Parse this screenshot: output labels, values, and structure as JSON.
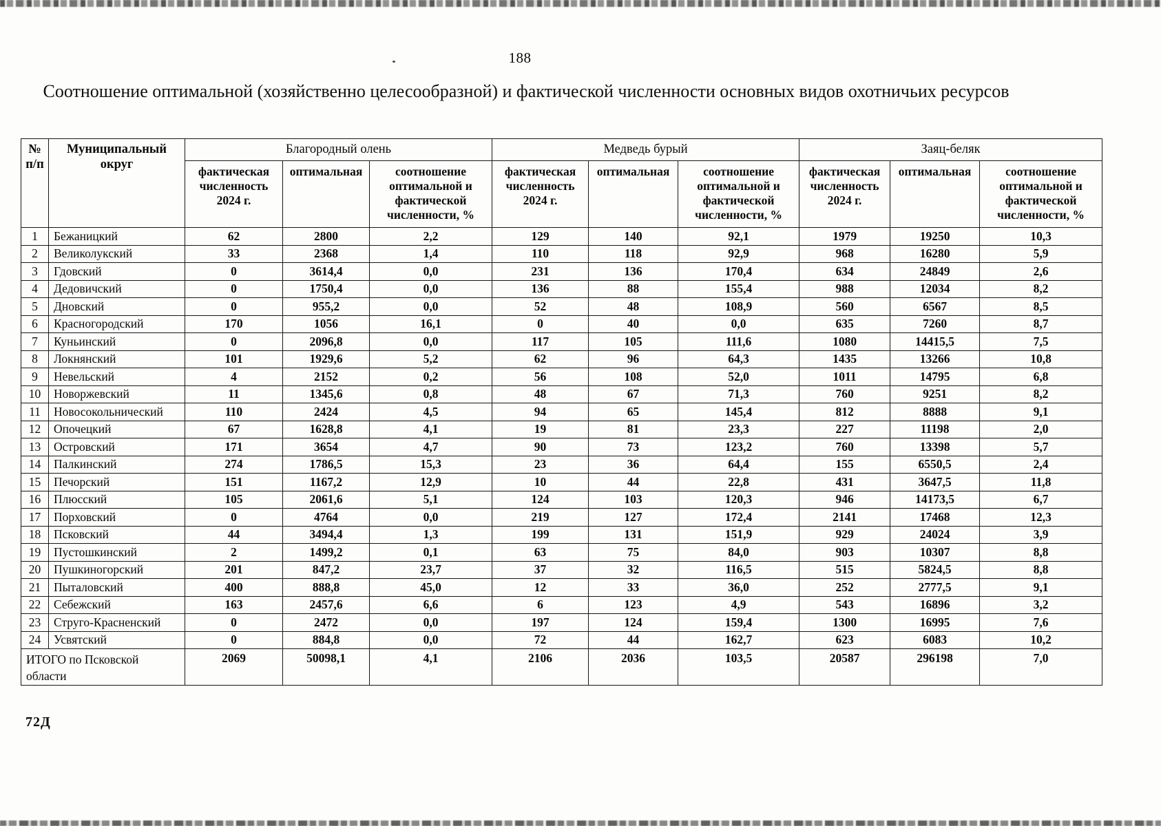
{
  "page": {
    "number": "188",
    "title": "Соотношение оптимальной (хозяйственно целесообразной) и фактической численности основных видов охотничьих ресурсов",
    "footer_code": "72Д"
  },
  "table": {
    "col_num_header": "№\nп/п",
    "col_municipality_header": "Муниципальный округ",
    "groups": [
      "Благородный олень",
      "Медведь бурый",
      "Заяц-беляк"
    ],
    "subheaders": [
      "фактическая численность 2024 г.",
      "оптимальная",
      "соотношение оптимальной и фактической численности, %"
    ],
    "rows": [
      {
        "num": "1",
        "name": "Бежаницкий",
        "values": [
          "62",
          "2800",
          "2,2",
          "129",
          "140",
          "92,1",
          "1979",
          "19250",
          "10,3"
        ]
      },
      {
        "num": "2",
        "name": "Великолукский",
        "values": [
          "33",
          "2368",
          "1,4",
          "110",
          "118",
          "92,9",
          "968",
          "16280",
          "5,9"
        ]
      },
      {
        "num": "3",
        "name": "Гдовский",
        "values": [
          "0",
          "3614,4",
          "0,0",
          "231",
          "136",
          "170,4",
          "634",
          "24849",
          "2,6"
        ]
      },
      {
        "num": "4",
        "name": "Дедовичский",
        "values": [
          "0",
          "1750,4",
          "0,0",
          "136",
          "88",
          "155,4",
          "988",
          "12034",
          "8,2"
        ]
      },
      {
        "num": "5",
        "name": "Дновский",
        "values": [
          "0",
          "955,2",
          "0,0",
          "52",
          "48",
          "108,9",
          "560",
          "6567",
          "8,5"
        ]
      },
      {
        "num": "6",
        "name": "Красногородский",
        "values": [
          "170",
          "1056",
          "16,1",
          "0",
          "40",
          "0,0",
          "635",
          "7260",
          "8,7"
        ]
      },
      {
        "num": "7",
        "name": "Куньинский",
        "values": [
          "0",
          "2096,8",
          "0,0",
          "117",
          "105",
          "111,6",
          "1080",
          "14415,5",
          "7,5"
        ]
      },
      {
        "num": "8",
        "name": "Локнянский",
        "values": [
          "101",
          "1929,6",
          "5,2",
          "62",
          "96",
          "64,3",
          "1435",
          "13266",
          "10,8"
        ]
      },
      {
        "num": "9",
        "name": "Невельский",
        "values": [
          "4",
          "2152",
          "0,2",
          "56",
          "108",
          "52,0",
          "1011",
          "14795",
          "6,8"
        ]
      },
      {
        "num": "10",
        "name": "Новоржевский",
        "values": [
          "11",
          "1345,6",
          "0,8",
          "48",
          "67",
          "71,3",
          "760",
          "9251",
          "8,2"
        ]
      },
      {
        "num": "11",
        "name": "Новосокольнический",
        "values": [
          "110",
          "2424",
          "4,5",
          "94",
          "65",
          "145,4",
          "812",
          "8888",
          "9,1"
        ]
      },
      {
        "num": "12",
        "name": "Опочецкий",
        "values": [
          "67",
          "1628,8",
          "4,1",
          "19",
          "81",
          "23,3",
          "227",
          "11198",
          "2,0"
        ]
      },
      {
        "num": "13",
        "name": "Островский",
        "values": [
          "171",
          "3654",
          "4,7",
          "90",
          "73",
          "123,2",
          "760",
          "13398",
          "5,7"
        ]
      },
      {
        "num": "14",
        "name": "Палкинский",
        "values": [
          "274",
          "1786,5",
          "15,3",
          "23",
          "36",
          "64,4",
          "155",
          "6550,5",
          "2,4"
        ]
      },
      {
        "num": "15",
        "name": "Печорский",
        "values": [
          "151",
          "1167,2",
          "12,9",
          "10",
          "44",
          "22,8",
          "431",
          "3647,5",
          "11,8"
        ]
      },
      {
        "num": "16",
        "name": "Плюсский",
        "values": [
          "105",
          "2061,6",
          "5,1",
          "124",
          "103",
          "120,3",
          "946",
          "14173,5",
          "6,7"
        ]
      },
      {
        "num": "17",
        "name": "Порховский",
        "values": [
          "0",
          "4764",
          "0,0",
          "219",
          "127",
          "172,4",
          "2141",
          "17468",
          "12,3"
        ]
      },
      {
        "num": "18",
        "name": "Псковский",
        "values": [
          "44",
          "3494,4",
          "1,3",
          "199",
          "131",
          "151,9",
          "929",
          "24024",
          "3,9"
        ]
      },
      {
        "num": "19",
        "name": "Пустошкинский",
        "values": [
          "2",
          "1499,2",
          "0,1",
          "63",
          "75",
          "84,0",
          "903",
          "10307",
          "8,8"
        ]
      },
      {
        "num": "20",
        "name": "Пушкиногорский",
        "values": [
          "201",
          "847,2",
          "23,7",
          "37",
          "32",
          "116,5",
          "515",
          "5824,5",
          "8,8"
        ]
      },
      {
        "num": "21",
        "name": "Пыталовский",
        "values": [
          "400",
          "888,8",
          "45,0",
          "12",
          "33",
          "36,0",
          "252",
          "2777,5",
          "9,1"
        ]
      },
      {
        "num": "22",
        "name": "Себежский",
        "values": [
          "163",
          "2457,6",
          "6,6",
          "6",
          "123",
          "4,9",
          "543",
          "16896",
          "3,2"
        ]
      },
      {
        "num": "23",
        "name": "Струго-Красненский",
        "values": [
          "0",
          "2472",
          "0,0",
          "197",
          "124",
          "159,4",
          "1300",
          "16995",
          "7,6"
        ]
      },
      {
        "num": "24",
        "name": "Усвятский",
        "values": [
          "0",
          "884,8",
          "0,0",
          "72",
          "44",
          "162,7",
          "623",
          "6083",
          "10,2"
        ]
      }
    ],
    "total": {
      "label": "ИТОГО по Псковской области",
      "values": [
        "2069",
        "50098,1",
        "4,1",
        "2106",
        "2036",
        "103,5",
        "20587",
        "296198",
        "7,0"
      ]
    }
  }
}
